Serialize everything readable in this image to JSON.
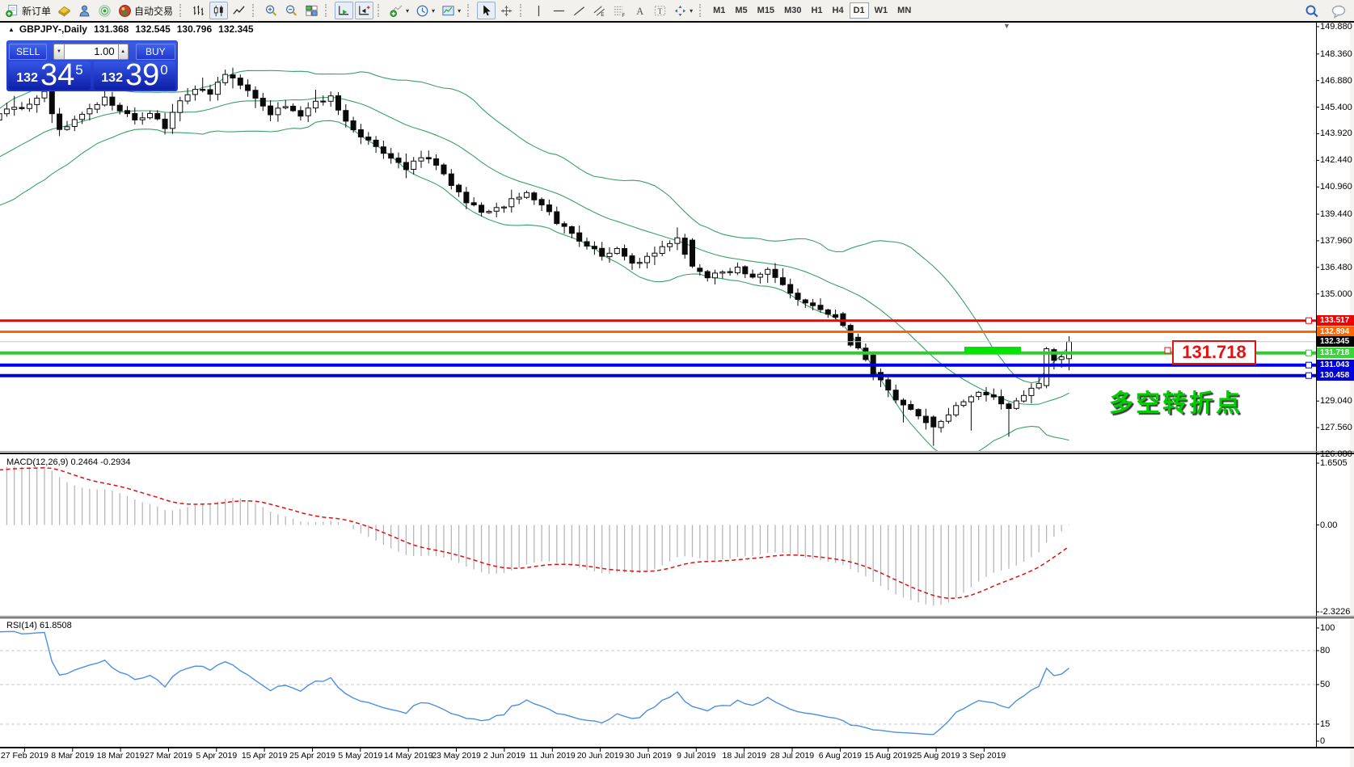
{
  "toolbar": {
    "buttons": [
      {
        "name": "new-order-button",
        "icon": "new-order",
        "label": "新订单"
      },
      {
        "name": "styler-button",
        "icon": "styler"
      },
      {
        "name": "profile-button",
        "icon": "profile"
      },
      {
        "name": "signal-button",
        "icon": "signal"
      },
      {
        "name": "autotrade-button",
        "icon": "autotrade",
        "label": "自动交易"
      },
      {
        "type": "grip"
      },
      {
        "name": "bar-chart-button",
        "icon": "bars"
      },
      {
        "name": "candle-chart-button",
        "icon": "candles",
        "active": true
      },
      {
        "name": "line-chart-button",
        "icon": "line"
      },
      {
        "type": "grip"
      },
      {
        "name": "zoom-in-button",
        "icon": "zoom-in"
      },
      {
        "name": "zoom-out-button",
        "icon": "zoom-out"
      },
      {
        "name": "tile-windows-button",
        "icon": "tile"
      },
      {
        "type": "grip"
      },
      {
        "name": "auto-scroll-button",
        "icon": "autoscroll",
        "active": true
      },
      {
        "name": "chart-shift-button",
        "icon": "chartshift",
        "active": true
      },
      {
        "type": "grip"
      },
      {
        "name": "indicators-button",
        "icon": "indicators",
        "dropdown": true
      },
      {
        "name": "periods-button",
        "icon": "periods",
        "dropdown": true
      },
      {
        "name": "templates-button",
        "icon": "templates",
        "dropdown": true
      },
      {
        "type": "grip"
      },
      {
        "name": "cursor-button",
        "icon": "cursor",
        "active": true
      },
      {
        "name": "crosshair-button",
        "icon": "crosshair"
      },
      {
        "type": "grip"
      },
      {
        "name": "vertical-line-button",
        "icon": "vline"
      },
      {
        "name": "horizontal-line-button",
        "icon": "hline"
      },
      {
        "name": "trendline-button",
        "icon": "trendline"
      },
      {
        "name": "channel-button",
        "icon": "channel"
      },
      {
        "name": "fibonacci-button",
        "icon": "fibo"
      },
      {
        "name": "text-button",
        "icon": "text"
      },
      {
        "name": "text-label-button",
        "icon": "label"
      },
      {
        "name": "arrows-button",
        "icon": "arrows",
        "dropdown": true
      },
      {
        "type": "grip"
      }
    ],
    "timeframes": [
      "M1",
      "M5",
      "M15",
      "M30",
      "H1",
      "H4",
      "D1",
      "W1",
      "MN"
    ],
    "active_timeframe": "D1",
    "right_buttons": [
      {
        "name": "search-button",
        "icon": "search"
      },
      {
        "name": "chat-button",
        "icon": "chat"
      }
    ]
  },
  "glyphs": {
    "dropdown": "▾",
    "spinner_up": "▲",
    "spinner_down": "▼",
    "collapse": "▲",
    "shift_marker": "▼"
  },
  "chart": {
    "title": {
      "symbol": "GBPJPY-,Daily",
      "open": "131.368",
      "high": "132.545",
      "low": "130.796",
      "close": "132.345"
    },
    "trade_panel": {
      "sell_label": "SELL",
      "buy_label": "BUY",
      "volume": "1.00",
      "sell_price": {
        "small": "132",
        "big": "34",
        "sup": "5"
      },
      "buy_price": {
        "small": "132",
        "big": "39",
        "sup": "0"
      }
    },
    "price_axis_labels": [
      "149.880",
      "148.360",
      "146.880",
      "145.400",
      "143.920",
      "142.440",
      "140.960",
      "139.440",
      "137.960",
      "136.480",
      "135.000",
      "129.040",
      "127.560",
      "126.080"
    ],
    "levels": [
      {
        "price": 133.517,
        "label": "133.517",
        "color": "#f50000",
        "tag_color": "#f50000",
        "width": 3,
        "square": true
      },
      {
        "price": 132.894,
        "label": "132.894",
        "color": "#ff6600",
        "tag_color": "#ff6600",
        "width": 3,
        "square": false
      },
      {
        "price": 132.345,
        "label": "132.345",
        "color": "#c8c8c8",
        "tag_color": "#000000",
        "width": 1,
        "square": false
      },
      {
        "price": 131.718,
        "label": "131.718",
        "color": "#2fcc2f",
        "tag_color": "#3bd43b",
        "width": 4,
        "square": true
      },
      {
        "price": 131.043,
        "label": "131.043",
        "color": "#0000e1",
        "tag_color": "#0000d8",
        "width": 4,
        "square": true
      },
      {
        "price": 130.458,
        "label": "130.458",
        "color": "#0000e1",
        "tag_color": "#0000d8",
        "width": 4,
        "square": true
      }
    ],
    "callout_text": "131.718",
    "annotation_text": "多空转折点",
    "time_axis_labels": [
      "27 Feb 2019",
      "8 Mar 2019",
      "18 Mar 2019",
      "27 Mar 2019",
      "5 Apr 2019",
      "15 Apr 2019",
      "25 Apr 2019",
      "5 May 2019",
      "14 May 2019",
      "23 May 2019",
      "2 Jun 2019",
      "11 Jun 2019",
      "20 Jun 2019",
      "30 Jun 2019",
      "9 Jul 2019",
      "18 Jul 2019",
      "28 Jul 2019",
      "6 Aug 2019",
      "15 Aug 2019",
      "25 Aug 2019",
      "3 Sep 2019"
    ]
  },
  "macd_pane": {
    "label": "MACD(12,26,9) 0.2464 -0.2934",
    "scale": [
      {
        "label": "1.6505",
        "value": 1.6505
      },
      {
        "label": "0.00",
        "value": 0
      },
      {
        "label": "-2.3226",
        "value": -2.3226
      }
    ]
  },
  "rsi_pane": {
    "label": "RSI(14) 61.8508",
    "scale": [
      {
        "label": "100",
        "value": 100
      },
      {
        "label": "80",
        "value": 80
      },
      {
        "label": "50",
        "value": 50
      },
      {
        "label": "15",
        "value": 15
      },
      {
        "label": "0",
        "value": 0
      }
    ],
    "dashed_levels": [
      80,
      50,
      15
    ]
  },
  "colors": {
    "band_green": "#3aa06a",
    "rsi_blue": "#4d8fe0",
    "signal_red": "#e01010",
    "hist_gray": "#b6b6b6",
    "highlight_green": "#00e400",
    "annotation_green": "#00cd00",
    "callout_red": "#e81010",
    "bull_fill": "#ffffff",
    "bear_fill": "#0a0a0a",
    "panel_blue": "#1b2fc0"
  },
  "chart_data": {
    "type": "candlestick",
    "symbol": "GBPJPY",
    "timeframe": "Daily",
    "last_ohlc": {
      "open": 131.368,
      "high": 132.545,
      "low": 130.796,
      "close": 132.345
    },
    "price_axis_range": [
      126.08,
      149.88
    ],
    "horizontal_levels": [
      133.517,
      132.894,
      132.345,
      131.718,
      131.043,
      130.458
    ],
    "indicators": [
      {
        "name": "Bollinger Bands"
      },
      {
        "name": "MACD",
        "params": "12,26,9",
        "value": 0.2464,
        "signal": -0.2934,
        "scale_range": [
          -2.3226,
          1.6505
        ]
      },
      {
        "name": "RSI",
        "params": "14",
        "value": 61.8508,
        "dashed_levels": [
          80,
          50,
          15
        ]
      }
    ],
    "close_path_anchors": [
      [
        0,
        146.2
      ],
      [
        2,
        144.1
      ],
      [
        4,
        144.7
      ],
      [
        6,
        145.3
      ],
      [
        8,
        145.9
      ],
      [
        10,
        145.2
      ],
      [
        12,
        144.7
      ],
      [
        14,
        145.1
      ],
      [
        16,
        144.3
      ],
      [
        18,
        145.7
      ],
      [
        20,
        146.4
      ],
      [
        22,
        146.1
      ],
      [
        24,
        147.3
      ],
      [
        26,
        146.6
      ],
      [
        28,
        145.8
      ],
      [
        30,
        145.1
      ],
      [
        32,
        145.5
      ],
      [
        34,
        145.0
      ],
      [
        36,
        145.6
      ],
      [
        38,
        145.9
      ],
      [
        40,
        144.7
      ],
      [
        42,
        143.7
      ],
      [
        44,
        143.2
      ],
      [
        46,
        142.5
      ],
      [
        48,
        142.0
      ],
      [
        50,
        142.6
      ],
      [
        52,
        142.2
      ],
      [
        54,
        141.0
      ],
      [
        56,
        140.2
      ],
      [
        58,
        139.5
      ],
      [
        60,
        139.7
      ],
      [
        62,
        140.2
      ],
      [
        64,
        140.7
      ],
      [
        66,
        140.0
      ],
      [
        68,
        139.0
      ],
      [
        70,
        138.4
      ],
      [
        72,
        137.7
      ],
      [
        74,
        137.1
      ],
      [
        76,
        137.5
      ],
      [
        78,
        136.7
      ],
      [
        80,
        137.0
      ],
      [
        82,
        137.6
      ],
      [
        84,
        138.0
      ],
      [
        86,
        136.5
      ],
      [
        88,
        136.0
      ],
      [
        90,
        136.2
      ],
      [
        92,
        136.4
      ],
      [
        94,
        136.0
      ],
      [
        96,
        136.3
      ],
      [
        98,
        135.4
      ],
      [
        100,
        134.8
      ],
      [
        102,
        134.3
      ],
      [
        104,
        134.0
      ],
      [
        106,
        133.3
      ],
      [
        108,
        132.0
      ],
      [
        110,
        130.6
      ],
      [
        112,
        129.7
      ],
      [
        114,
        128.7
      ],
      [
        116,
        128.3
      ],
      [
        118,
        127.6
      ],
      [
        120,
        128.4
      ],
      [
        122,
        129.0
      ],
      [
        124,
        129.5
      ],
      [
        126,
        129.2
      ],
      [
        128,
        128.7
      ],
      [
        130,
        129.3
      ],
      [
        132,
        130.0
      ],
      [
        133,
        131.9
      ],
      [
        134,
        131.3
      ],
      [
        135,
        131.5
      ],
      [
        136,
        132.345
      ]
    ]
  }
}
